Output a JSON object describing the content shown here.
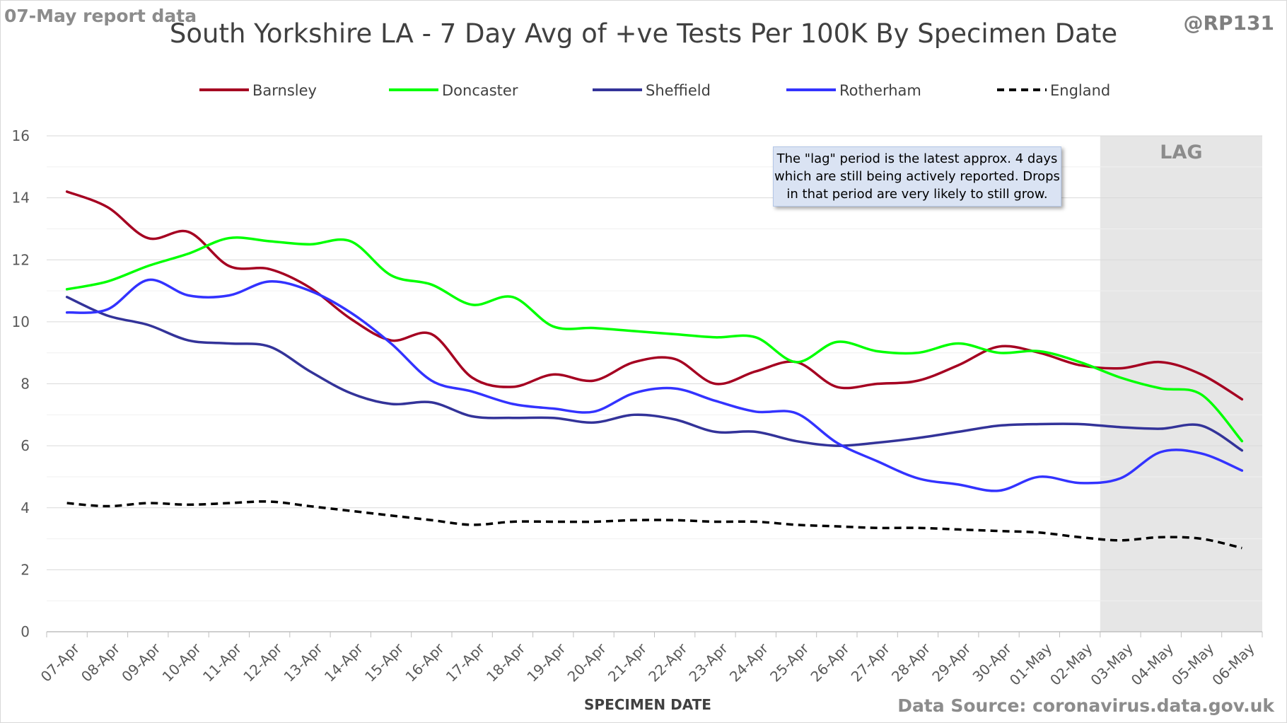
{
  "header": {
    "report_label": "07-May report data",
    "handle": "@RP131",
    "title": "South Yorkshire LA - 7 Day Avg of +ve Tests Per 100K By Specimen Date"
  },
  "footer": {
    "source": "Data Source: coronavirus.data.gov.uk"
  },
  "note": {
    "lines": [
      "The \"lag\" period is the latest approx. 4 days",
      "which are still being actively reported.  Drops",
      "in that period are very likely to still grow."
    ]
  },
  "chart_data": {
    "type": "line",
    "title": "South Yorkshire LA - 7 Day Avg of +ve Tests Per 100K By Specimen Date",
    "xlabel": "SPECIMEN DATE",
    "ylabel": "",
    "ylim": [
      0,
      16
    ],
    "yticks": [
      0,
      2,
      4,
      6,
      8,
      10,
      12,
      14,
      16
    ],
    "grid": true,
    "legend_position": "top",
    "lag_label": "LAG",
    "lag_start": "03-May",
    "lag_end": "06-May",
    "lag_color": "#e6e6e6",
    "categories": [
      "07-Apr",
      "08-Apr",
      "09-Apr",
      "10-Apr",
      "11-Apr",
      "12-Apr",
      "13-Apr",
      "14-Apr",
      "15-Apr",
      "16-Apr",
      "17-Apr",
      "18-Apr",
      "19-Apr",
      "20-Apr",
      "21-Apr",
      "22-Apr",
      "23-Apr",
      "24-Apr",
      "25-Apr",
      "26-Apr",
      "27-Apr",
      "28-Apr",
      "29-Apr",
      "30-Apr",
      "01-May",
      "02-May",
      "03-May",
      "04-May",
      "05-May",
      "06-May"
    ],
    "series": [
      {
        "name": "Barnsley",
        "color": "#a50021",
        "dash": "solid",
        "values": [
          14.2,
          13.7,
          12.7,
          12.9,
          11.8,
          11.7,
          11.1,
          10.1,
          9.4,
          9.6,
          8.2,
          7.9,
          8.3,
          8.1,
          8.7,
          8.8,
          8.0,
          8.4,
          8.7,
          7.9,
          8.0,
          8.1,
          8.6,
          9.2,
          9.0,
          8.6,
          8.5,
          8.7,
          8.3,
          7.5
        ]
      },
      {
        "name": "Doncaster",
        "color": "#00ff00",
        "dash": "solid",
        "values": [
          11.05,
          11.3,
          11.8,
          12.2,
          12.7,
          12.6,
          12.5,
          12.6,
          11.5,
          11.2,
          10.55,
          10.8,
          9.85,
          9.8,
          9.7,
          9.6,
          9.5,
          9.5,
          8.7,
          9.35,
          9.05,
          9.0,
          9.3,
          9.0,
          9.05,
          8.7,
          8.2,
          7.85,
          7.65,
          6.15
        ]
      },
      {
        "name": "Sheffield",
        "color": "#333399",
        "dash": "solid",
        "values": [
          10.8,
          10.2,
          9.9,
          9.4,
          9.3,
          9.2,
          8.4,
          7.7,
          7.35,
          7.4,
          6.95,
          6.9,
          6.9,
          6.75,
          7.0,
          6.85,
          6.45,
          6.45,
          6.15,
          6.0,
          6.1,
          6.25,
          6.45,
          6.65,
          6.7,
          6.7,
          6.6,
          6.55,
          6.65,
          5.85
        ]
      },
      {
        "name": "Rotherham",
        "color": "#3333ff",
        "dash": "solid",
        "values": [
          10.3,
          10.4,
          11.35,
          10.85,
          10.85,
          11.3,
          11.0,
          10.3,
          9.3,
          8.1,
          7.75,
          7.35,
          7.2,
          7.1,
          7.7,
          7.85,
          7.45,
          7.1,
          7.05,
          6.1,
          5.5,
          4.95,
          4.75,
          4.55,
          5.0,
          4.8,
          4.95,
          5.8,
          5.75,
          5.2
        ]
      },
      {
        "name": "England",
        "color": "#000000",
        "dash": "dash",
        "values": [
          4.15,
          4.05,
          4.15,
          4.1,
          4.15,
          4.2,
          4.05,
          3.9,
          3.75,
          3.6,
          3.45,
          3.55,
          3.55,
          3.55,
          3.6,
          3.6,
          3.55,
          3.55,
          3.45,
          3.4,
          3.35,
          3.35,
          3.3,
          3.25,
          3.2,
          3.05,
          2.95,
          3.05,
          3.0,
          2.7
        ]
      }
    ]
  }
}
